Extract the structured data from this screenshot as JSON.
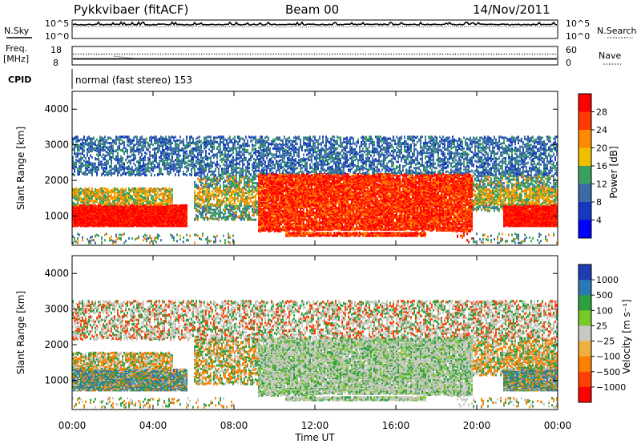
{
  "header": {
    "station": "Pykkvibaer (fitACF)",
    "beam": "Beam 00",
    "date": "14/Nov/2011"
  },
  "top_panels": {
    "nsky_label": "N.Sky",
    "nsearch_label": "N.Search",
    "nsky_ticks": [
      "10^5",
      "10^0"
    ],
    "nsearch_ticks": [
      "10^5",
      "10^0"
    ],
    "freq_label_1": "Freq.",
    "freq_label_2": "[MHz]",
    "freq_ticks": [
      "18",
      "8"
    ],
    "nave_label": "Nave",
    "nave_ticks": [
      "60",
      "0"
    ],
    "cpid_label": "CPID",
    "cpid_text": "normal (fast stereo) 153"
  },
  "chart_data": [
    {
      "type": "heatmap",
      "name": "power",
      "ylabel": "Slant Range [km]",
      "xlabel": "",
      "x_range_hours": [
        0,
        24
      ],
      "ylim": [
        180,
        4500
      ],
      "yticks": [
        1000,
        2000,
        3000,
        4000
      ],
      "ytick_labels": [
        "1000",
        "2000",
        "3000",
        "4000"
      ],
      "colorbar_label": "Power [dB]",
      "colorbar_ticks": [
        "28",
        "24",
        "20",
        "16",
        "12",
        "8",
        "4"
      ],
      "colorbar_colors": [
        "#ff0000",
        "#ff3a00",
        "#ff8a00",
        "#f0c000",
        "#3aa060",
        "#3a6aa8",
        "#1438c0",
        "#0000ff"
      ]
    },
    {
      "type": "heatmap",
      "name": "velocity",
      "ylabel": "Slant Range [km]",
      "xlabel": "Time UT",
      "x_range_hours": [
        0,
        24
      ],
      "ylim": [
        180,
        4500
      ],
      "yticks": [
        1000,
        2000,
        3000,
        4000
      ],
      "ytick_labels": [
        "1000",
        "2000",
        "3000",
        "4000"
      ],
      "xtick_labels": [
        "00:00",
        "04:00",
        "08:00",
        "12:00",
        "16:00",
        "20:00",
        "00:00"
      ],
      "colorbar_label": "Velocity [m s⁻¹]",
      "colorbar_ticks": [
        "1000",
        "500",
        "100",
        "25",
        "−25",
        "−100",
        "−500",
        "−1000"
      ],
      "colorbar_colors": [
        "#1e3cb4",
        "#2a78b4",
        "#2ea040",
        "#78c828",
        "#c8c8c0",
        "#f0b040",
        "#ff8000",
        "#ff4000",
        "#ff0000"
      ]
    }
  ]
}
